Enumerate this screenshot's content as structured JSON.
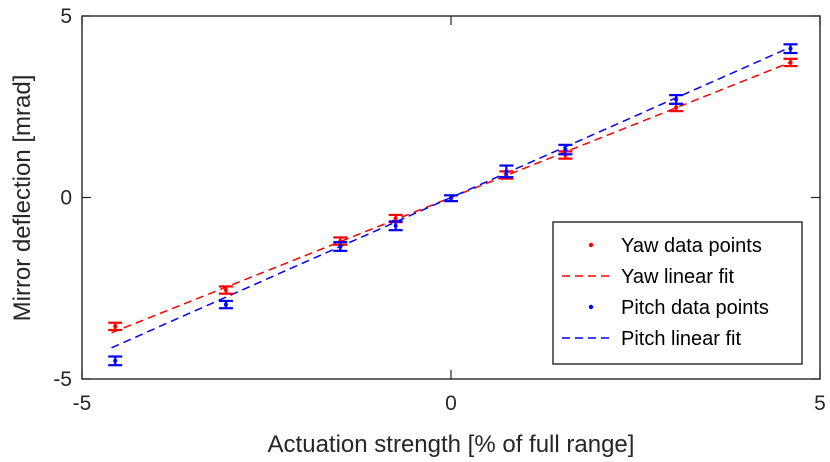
{
  "chart_data": {
    "type": "line",
    "title": "",
    "xlabel": "Actuation strength [% of full range]",
    "ylabel": "Mirror deflection [mrad]",
    "xlim": [
      -5,
      5
    ],
    "ylim": [
      -5,
      5
    ],
    "xticks": [
      -5,
      0,
      5
    ],
    "yticks": [
      -5,
      0,
      5
    ],
    "xtick_labels": [
      "-5",
      "0",
      "5"
    ],
    "ytick_labels": [
      "-5",
      "0",
      "5"
    ],
    "grid": false,
    "legend_position": "bottom-right",
    "series": [
      {
        "name": "Yaw data points",
        "kind": "errorbar",
        "color": "#ff0000",
        "x": [
          -4.55,
          -3.05,
          -1.5,
          -0.75,
          0.75,
          1.55,
          3.05,
          4.6
        ],
        "y": [
          -3.55,
          -2.55,
          -1.2,
          -0.58,
          0.62,
          1.17,
          2.48,
          3.72
        ],
        "err": [
          0.1,
          0.1,
          0.1,
          0.1,
          0.1,
          0.1,
          0.1,
          0.1
        ]
      },
      {
        "name": "Yaw linear fit",
        "kind": "fit",
        "color": "#ff0000",
        "slope": 0.81,
        "intercept": 0.0,
        "x_range": [
          -4.6,
          4.6
        ]
      },
      {
        "name": "Pitch data points",
        "kind": "errorbar",
        "color": "#0000ff",
        "x": [
          -4.55,
          -3.05,
          -1.5,
          -0.75,
          0.0,
          0.75,
          1.55,
          3.05,
          4.6
        ],
        "y": [
          -4.5,
          -2.95,
          -1.35,
          -0.78,
          -0.02,
          0.72,
          1.32,
          2.7,
          4.1
        ],
        "err": [
          0.12,
          0.1,
          0.12,
          0.12,
          0.08,
          0.16,
          0.13,
          0.12,
          0.12
        ]
      },
      {
        "name": "Pitch linear fit",
        "kind": "fit",
        "color": "#0000ff",
        "slope": 0.9,
        "intercept": 0.0,
        "x_range": [
          -4.6,
          4.6
        ]
      }
    ]
  }
}
